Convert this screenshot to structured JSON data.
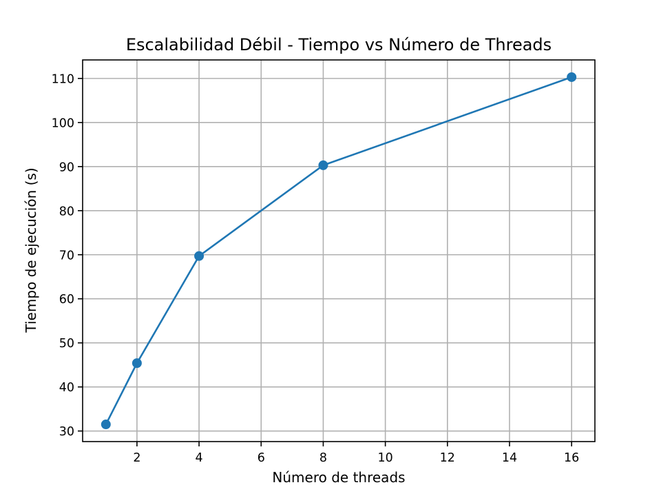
{
  "chart_data": {
    "type": "line",
    "title": "Escalabilidad Débil - Tiempo vs Número de Threads",
    "xlabel": "Número de threads",
    "ylabel": "Tiempo de ejecución (s)",
    "xlim": [
      0.25,
      16.75
    ],
    "ylim": [
      27.6,
      114.2
    ],
    "xticks": [
      2,
      4,
      6,
      8,
      10,
      12,
      14,
      16
    ],
    "yticks": [
      30,
      40,
      50,
      60,
      70,
      80,
      90,
      100,
      110
    ],
    "grid": true,
    "series": [
      {
        "marker": "circle",
        "color": "#1f77b4",
        "x": [
          1,
          2,
          4,
          8,
          16
        ],
        "y": [
          31.5,
          45.4,
          69.7,
          90.3,
          110.3
        ]
      }
    ]
  }
}
